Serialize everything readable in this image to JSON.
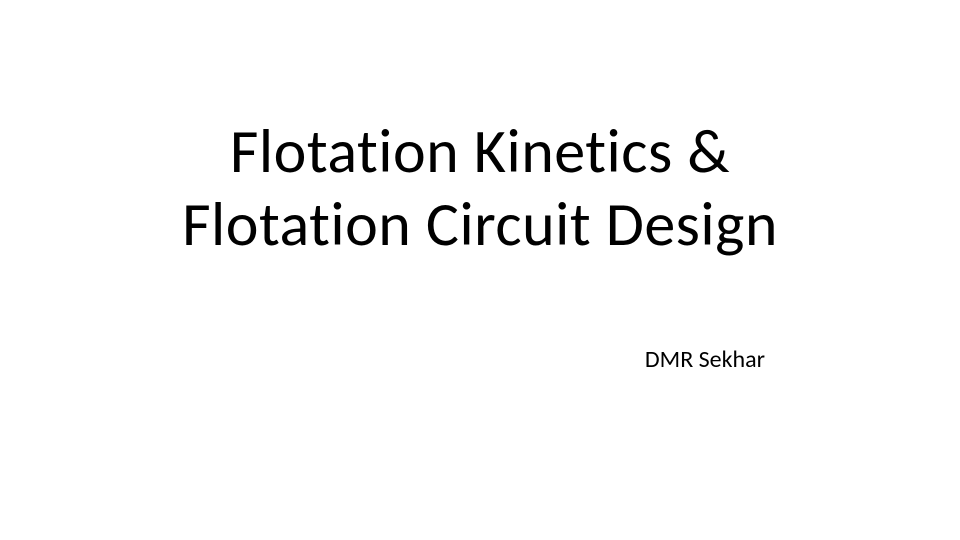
{
  "slide": {
    "title_line1": "Flotation Kinetics &",
    "title_line2": "Flotation Circuit Design",
    "author": "DMR Sekhar",
    "background_color": "#ffffff",
    "text_color": "#000000",
    "title_fontsize": 62,
    "author_fontsize": 24,
    "font_family": "Calibri"
  }
}
